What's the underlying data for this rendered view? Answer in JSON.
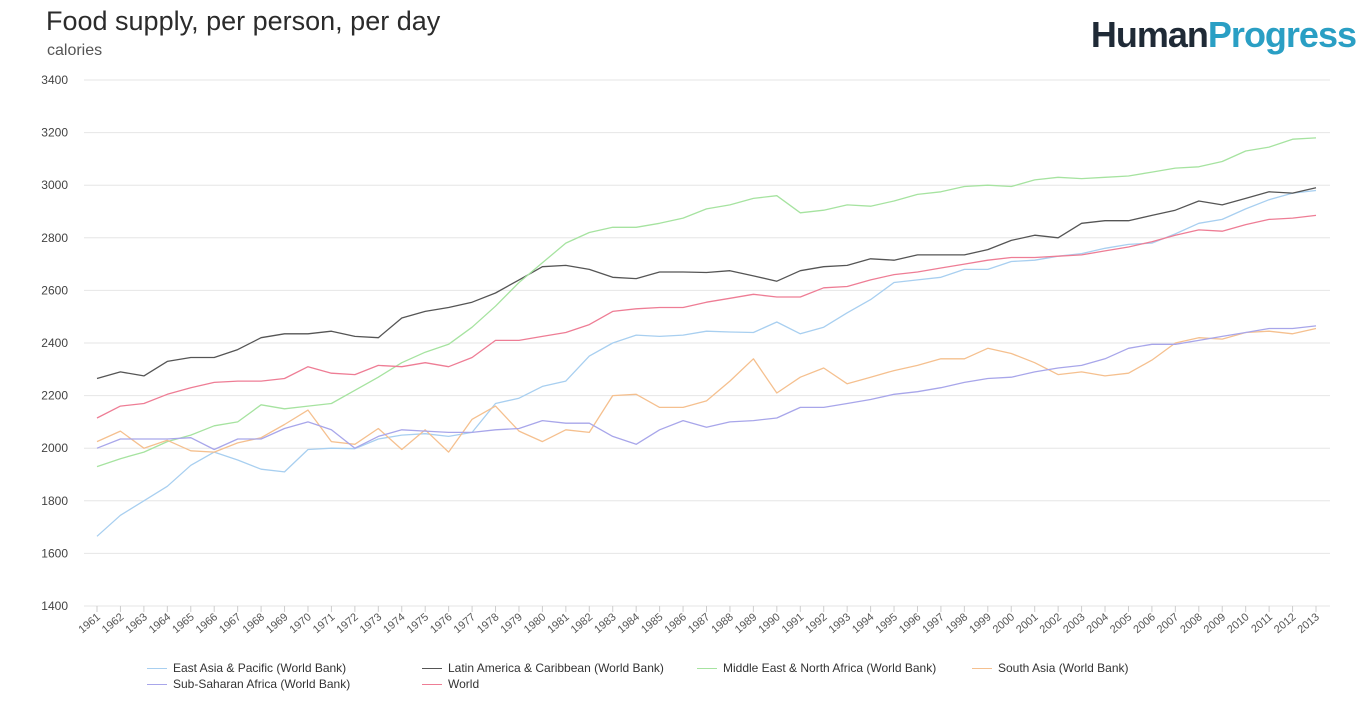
{
  "header": {
    "title": "Food supply, per person, per day",
    "subtitle": "calories",
    "logo_part1": "Human",
    "logo_part2": "Progress"
  },
  "chart_data": {
    "type": "line",
    "title": "Food supply, per person, per day",
    "ylabel": "calories",
    "ylim": [
      1400,
      3400
    ],
    "yticks": [
      1400,
      1600,
      1800,
      2000,
      2200,
      2400,
      2600,
      2800,
      3000,
      3200,
      3400
    ],
    "grid": true,
    "legend_placement": "bottom",
    "x": [
      "1961",
      "1962",
      "1963",
      "1964",
      "1965",
      "1966",
      "1967",
      "1968",
      "1969",
      "1970",
      "1971",
      "1972",
      "1973",
      "1974",
      "1975",
      "1976",
      "1977",
      "1978",
      "1979",
      "1980",
      "1981",
      "1982",
      "1983",
      "1984",
      "1985",
      "1986",
      "1987",
      "1988",
      "1989",
      "1990",
      "1991",
      "1992",
      "1993",
      "1994",
      "1995",
      "1996",
      "1997",
      "1998",
      "1999",
      "2000",
      "2001",
      "2002",
      "2003",
      "2004",
      "2005",
      "2006",
      "2007",
      "2008",
      "2009",
      "2010",
      "2011",
      "2012",
      "2013"
    ],
    "series": [
      {
        "name": "East Asia & Pacific (World Bank)",
        "color": "#a8cff0",
        "values": [
          1665,
          1745,
          1800,
          1855,
          1935,
          1985,
          1955,
          1920,
          1910,
          1995,
          2000,
          1998,
          2035,
          2050,
          2055,
          2045,
          2060,
          2170,
          2190,
          2235,
          2255,
          2350,
          2400,
          2430,
          2425,
          2430,
          2445,
          2442,
          2440,
          2480,
          2435,
          2460,
          2515,
          2565,
          2630,
          2640,
          2650,
          2680,
          2680,
          2710,
          2715,
          2730,
          2740,
          2760,
          2775,
          2780,
          2815,
          2855,
          2870,
          2910,
          2945,
          2970,
          2980
        ]
      },
      {
        "name": "Latin America & Caribbean (World Bank)",
        "color": "#555555",
        "values": [
          2265,
          2290,
          2275,
          2330,
          2345,
          2345,
          2375,
          2420,
          2435,
          2435,
          2445,
          2425,
          2420,
          2495,
          2520,
          2535,
          2555,
          2590,
          2640,
          2690,
          2695,
          2680,
          2650,
          2645,
          2670,
          2670,
          2668,
          2675,
          2655,
          2635,
          2675,
          2690,
          2695,
          2720,
          2715,
          2735,
          2735,
          2735,
          2755,
          2790,
          2810,
          2800,
          2855,
          2865,
          2865,
          2885,
          2905,
          2940,
          2925,
          2950,
          2975,
          2970,
          2990
        ]
      },
      {
        "name": "Middle East & North Africa (World Bank)",
        "color": "#a6e3a0",
        "values": [
          1930,
          1960,
          1985,
          2025,
          2050,
          2085,
          2100,
          2165,
          2150,
          2160,
          2170,
          2220,
          2270,
          2325,
          2365,
          2395,
          2460,
          2540,
          2630,
          2705,
          2780,
          2820,
          2840,
          2840,
          2855,
          2875,
          2910,
          2925,
          2950,
          2960,
          2895,
          2905,
          2925,
          2920,
          2940,
          2965,
          2975,
          2995,
          3000,
          2995,
          3020,
          3030,
          3025,
          3030,
          3035,
          3050,
          3065,
          3070,
          3090,
          3130,
          3145,
          3175,
          3180
        ]
      },
      {
        "name": "South Asia (World Bank)",
        "color": "#f5c08f",
        "values": [
          2025,
          2065,
          2000,
          2030,
          1990,
          1985,
          2020,
          2040,
          2090,
          2145,
          2025,
          2015,
          2075,
          1995,
          2070,
          1985,
          2110,
          2160,
          2065,
          2025,
          2070,
          2060,
          2200,
          2205,
          2155,
          2155,
          2180,
          2255,
          2340,
          2210,
          2270,
          2305,
          2245,
          2270,
          2295,
          2315,
          2340,
          2340,
          2380,
          2360,
          2325,
          2280,
          2290,
          2275,
          2285,
          2335,
          2400,
          2420,
          2415,
          2440,
          2445,
          2435,
          2455
        ]
      },
      {
        "name": "Sub-Saharan Africa (World Bank)",
        "color": "#a8a6ea",
        "values": [
          2000,
          2035,
          2035,
          2035,
          2040,
          1995,
          2035,
          2035,
          2075,
          2100,
          2070,
          2000,
          2045,
          2070,
          2065,
          2060,
          2060,
          2070,
          2075,
          2105,
          2095,
          2095,
          2045,
          2015,
          2070,
          2105,
          2080,
          2100,
          2105,
          2115,
          2155,
          2155,
          2170,
          2185,
          2205,
          2215,
          2230,
          2250,
          2265,
          2270,
          2290,
          2305,
          2315,
          2340,
          2380,
          2395,
          2395,
          2410,
          2425,
          2440,
          2455,
          2455,
          2465
        ]
      },
      {
        "name": "World",
        "color": "#ee7d95",
        "values": [
          2115,
          2160,
          2170,
          2205,
          2230,
          2250,
          2255,
          2255,
          2265,
          2310,
          2285,
          2280,
          2315,
          2310,
          2325,
          2310,
          2345,
          2410,
          2410,
          2425,
          2440,
          2470,
          2520,
          2530,
          2535,
          2535,
          2555,
          2570,
          2585,
          2575,
          2575,
          2610,
          2615,
          2640,
          2660,
          2670,
          2685,
          2700,
          2715,
          2725,
          2725,
          2730,
          2735,
          2750,
          2765,
          2785,
          2810,
          2830,
          2825,
          2850,
          2870,
          2875,
          2885
        ]
      }
    ]
  }
}
